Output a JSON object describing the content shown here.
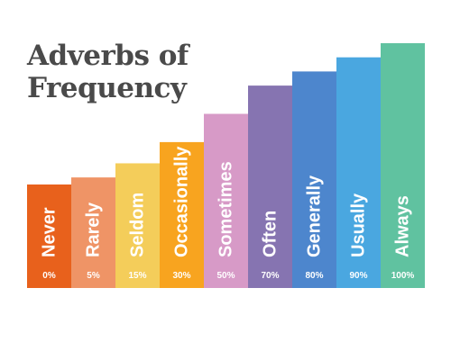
{
  "title": {
    "line1": "Adverbs of",
    "line2": "Frequency"
  },
  "chart_data": {
    "type": "bar",
    "title": "Adverbs of Frequency",
    "xlabel": "",
    "ylabel": "",
    "grid": false,
    "legend": "none",
    "ylim": [
      0,
      100
    ],
    "categories": [
      "Never",
      "Rarely",
      "Seldom",
      "Occasionally",
      "Sometimes",
      "Often",
      "Generally",
      "Usually",
      "Always"
    ],
    "value_labels": [
      "0%",
      "5%",
      "15%",
      "30%",
      "50%",
      "70%",
      "80%",
      "90%",
      "100%"
    ],
    "values": [
      0,
      5,
      15,
      30,
      50,
      70,
      80,
      90,
      100
    ],
    "colors": [
      "#e8611c",
      "#ef9466",
      "#f4cd5a",
      "#f8a41f",
      "#d79ac7",
      "#8674b1",
      "#4d86cd",
      "#4aa7e0",
      "#60c2a0"
    ]
  }
}
